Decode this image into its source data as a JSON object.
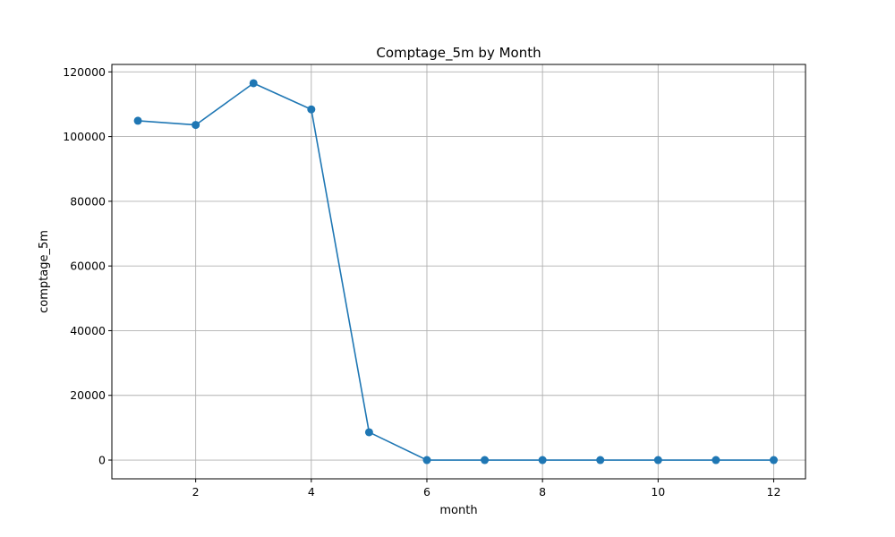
{
  "chart_data": {
    "type": "line",
    "title": "Comptage_5m by Month",
    "xlabel": "month",
    "ylabel": "comptage_5m",
    "x": [
      1,
      2,
      3,
      4,
      5,
      6,
      7,
      8,
      9,
      10,
      11,
      12
    ],
    "series": [
      {
        "values": [
          104900,
          103600,
          116500,
          108400,
          8600,
          0,
          0,
          0,
          0,
          0,
          0,
          0
        ],
        "color": "#1f77b4",
        "marker": "circle"
      }
    ],
    "xlim": [
      0.55,
      12.55
    ],
    "ylim": [
      -5800,
      122300
    ],
    "xticks": [
      2,
      4,
      6,
      8,
      10,
      12
    ],
    "yticks": [
      0,
      20000,
      40000,
      60000,
      80000,
      100000,
      120000
    ],
    "grid": true
  }
}
